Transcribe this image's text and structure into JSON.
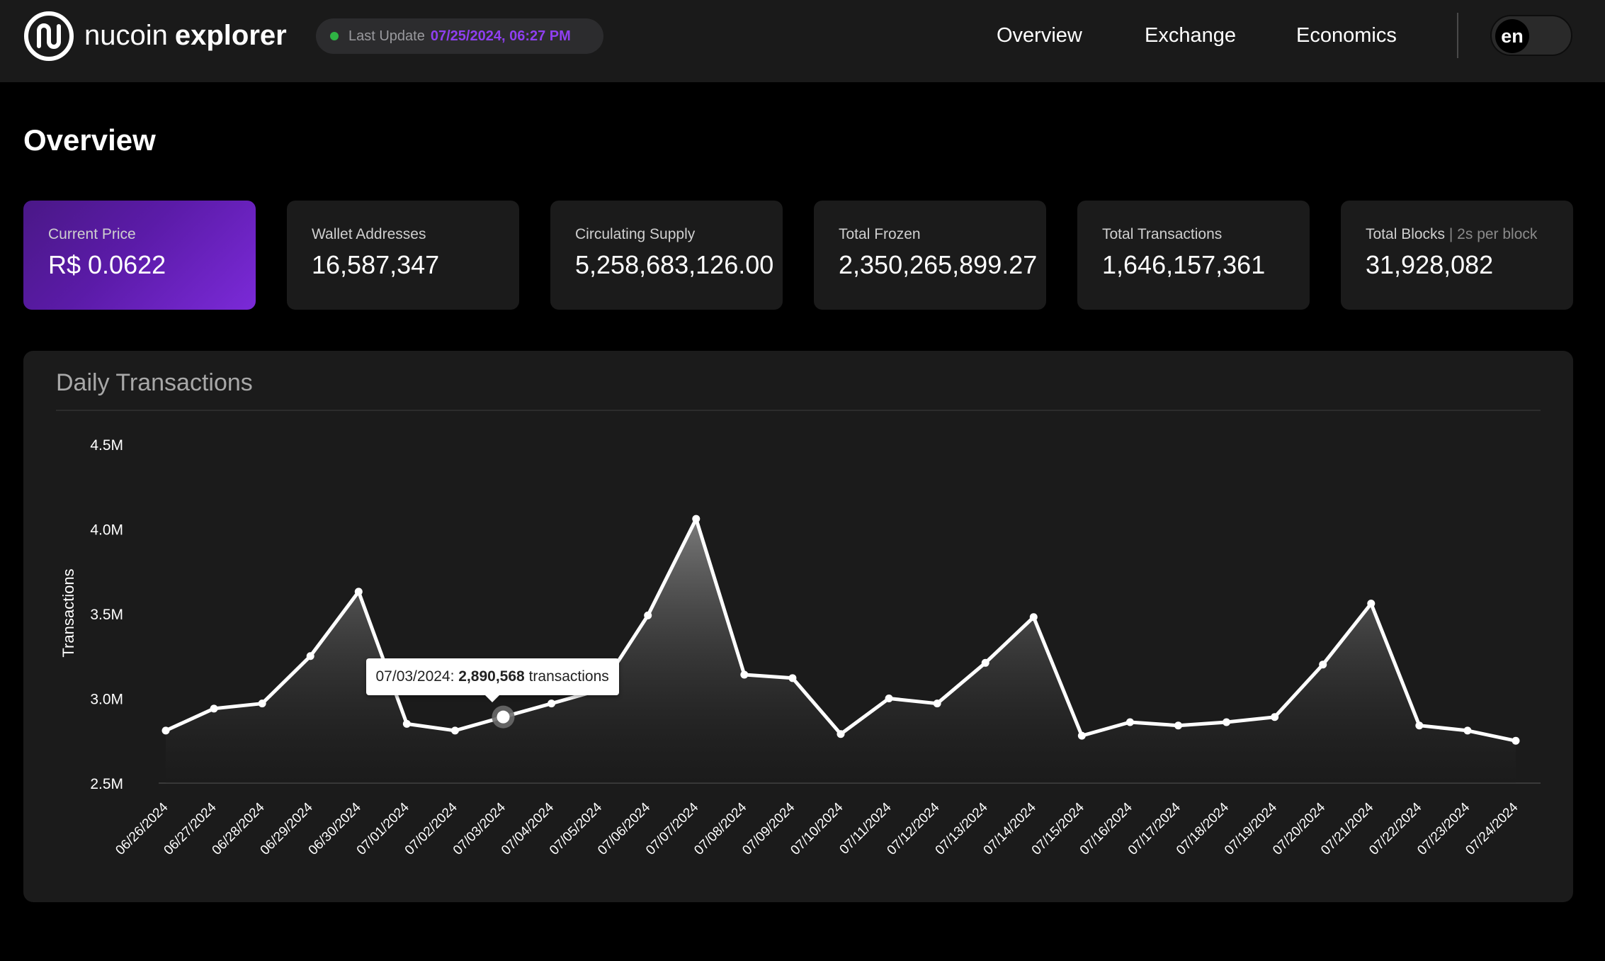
{
  "header": {
    "brand_name": "nucoin",
    "brand_suffix": "explorer",
    "last_update_label": "Last Update",
    "last_update_value": "07/25/2024, 06:27 PM",
    "nav": {
      "overview": "Overview",
      "exchange": "Exchange",
      "economics": "Economics"
    },
    "language": "en"
  },
  "page": {
    "title": "Overview"
  },
  "stats": [
    {
      "label": "Current Price",
      "sublabel": "",
      "value": "R$ 0.0622"
    },
    {
      "label": "Wallet Addresses",
      "sublabel": "",
      "value": "16,587,347"
    },
    {
      "label": "Circulating Supply",
      "sublabel": "",
      "value": "5,258,683,126.00"
    },
    {
      "label": "Total Frozen",
      "sublabel": "",
      "value": "2,350,265,899.27"
    },
    {
      "label": "Total Transactions",
      "sublabel": "",
      "value": "1,646,157,361"
    },
    {
      "label": "Total Blocks",
      "sublabel": "| 2s per block",
      "value": "31,928,082"
    }
  ],
  "colors": {
    "accent": "#8f3ff0",
    "highlight_card_start": "#4a1887",
    "highlight_card_end": "#7b2ad8",
    "status_dot": "#2fb344",
    "line": "#ffffff"
  },
  "tooltip": {
    "date": "07/03/2024:",
    "value": "2,890,568",
    "suffix": "transactions",
    "point_index": 7
  },
  "chart_data": {
    "type": "area",
    "title": "Daily Transactions",
    "xlabel": "",
    "ylabel": "Transactions",
    "ylim": [
      2500000,
      4500000
    ],
    "yticks": [
      2500000,
      3000000,
      3500000,
      4000000,
      4500000
    ],
    "ytick_labels": [
      "2.5M",
      "3.0M",
      "3.5M",
      "4.0M",
      "4.5M"
    ],
    "grid": false,
    "categories": [
      "06/26/2024",
      "06/27/2024",
      "06/28/2024",
      "06/29/2024",
      "06/30/2024",
      "07/01/2024",
      "07/02/2024",
      "07/03/2024",
      "07/04/2024",
      "07/05/2024",
      "07/06/2024",
      "07/07/2024",
      "07/08/2024",
      "07/09/2024",
      "07/10/2024",
      "07/11/2024",
      "07/12/2024",
      "07/13/2024",
      "07/14/2024",
      "07/15/2024",
      "07/16/2024",
      "07/17/2024",
      "07/18/2024",
      "07/19/2024",
      "07/20/2024",
      "07/21/2024",
      "07/22/2024",
      "07/23/2024",
      "07/24/2024"
    ],
    "series": [
      {
        "values": [
          2810000,
          2940000,
          2970000,
          3250000,
          3630000,
          2850000,
          2810000,
          2890568,
          2970000,
          3050000,
          3490000,
          4060000,
          3140000,
          3120000,
          2790000,
          3000000,
          2970000,
          3210000,
          3480000,
          2780000,
          2860000,
          2840000,
          2860000,
          2890000,
          3200000,
          3560000,
          2840000,
          2810000,
          2750000
        ]
      }
    ]
  }
}
